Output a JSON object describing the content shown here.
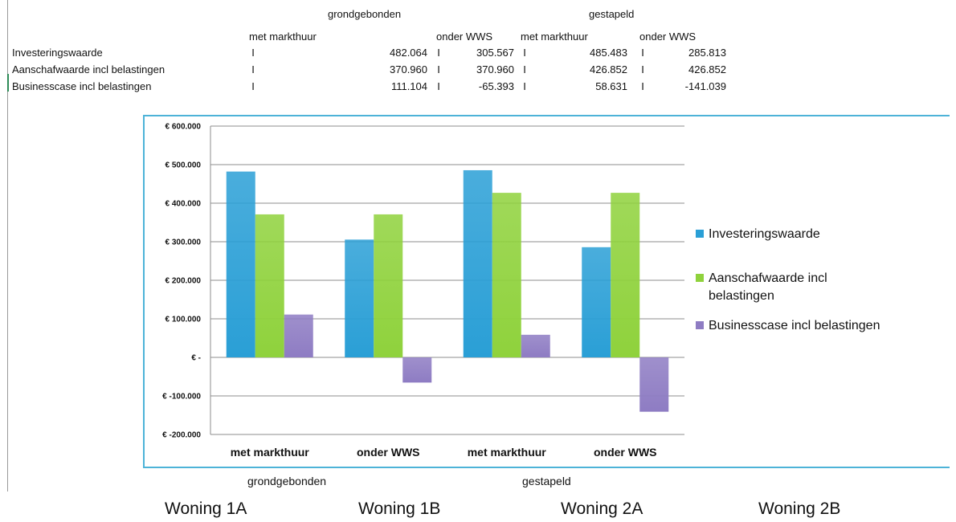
{
  "table": {
    "group1": "grondgebonden",
    "group2": "gestapeld",
    "sub1": "met markthuur",
    "sub2": "onder WWS",
    "sub3": "met markthuur",
    "sub4": "onder WWS",
    "sep": "I",
    "rows": [
      {
        "label": "Investeringswaarde",
        "v1": "482.064",
        "v2": "305.567",
        "v3": "485.483",
        "v4": "285.813"
      },
      {
        "label": "Aanschafwaarde incl belastingen",
        "v1": "370.960",
        "v2": "370.960",
        "v3": "426.852",
        "v4": "426.852"
      },
      {
        "label": "Businesscase incl belastingen",
        "v1": "111.104",
        "v2": "-65.393",
        "v3": "58.631",
        "v4": "-141.039"
      }
    ]
  },
  "chart_data": {
    "type": "bar",
    "categories": [
      "met markthuur",
      "onder WWS",
      "met markthuur",
      "onder WWS"
    ],
    "series": [
      {
        "name": "Investeringswaarde",
        "values": [
          482064,
          305567,
          485483,
          285813
        ],
        "color": "#2a9fd6"
      },
      {
        "name": "Aanschafwaarde incl belastingen",
        "values": [
          370960,
          370960,
          426852,
          426852
        ],
        "color": "#8fd23c"
      },
      {
        "name": "Businesscase incl belastingen",
        "values": [
          111104,
          -65393,
          58631,
          -141039
        ],
        "color": "#8e7cc3"
      }
    ],
    "y_ticks": [
      "€ 600.000",
      "€ 500.000",
      "€ 400.000",
      "€ 300.000",
      "€ 200.000",
      "€ 100.000",
      "€ -",
      "€ -100.000",
      "€ -200.000"
    ],
    "ylim": [
      -200000,
      600000
    ],
    "grid": true,
    "legend_position": "right"
  },
  "below_labels": {
    "group1": "grondgebonden",
    "group2": "gestapeld"
  },
  "woningen": [
    "Woning 1A",
    "Woning 1B",
    "Woning 2A",
    "Woning 2B"
  ]
}
